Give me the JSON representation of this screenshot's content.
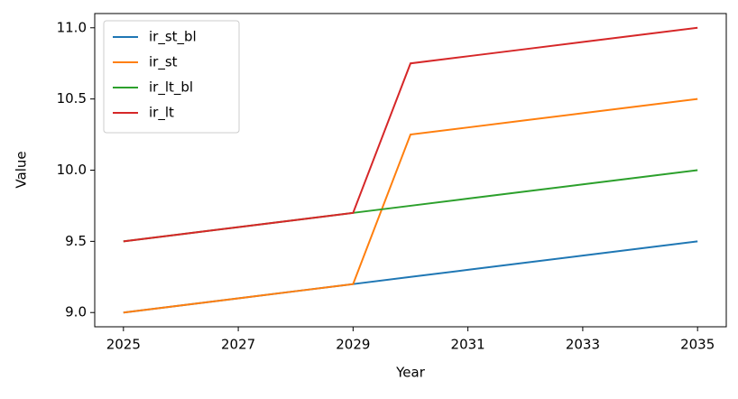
{
  "chart_data": {
    "type": "line",
    "x_label": "Year",
    "y_label": "Value",
    "x": [
      2025,
      2026,
      2027,
      2028,
      2029,
      2030,
      2031,
      2032,
      2033,
      2034,
      2035
    ],
    "series": [
      {
        "name": "ir_st_bl",
        "color": "#1f77b4",
        "values": [
          9.0,
          9.05,
          9.1,
          9.15,
          9.2,
          9.25,
          9.3,
          9.35,
          9.4,
          9.45,
          9.5
        ]
      },
      {
        "name": "ir_st",
        "color": "#ff7f0e",
        "values": [
          9.0,
          9.05,
          9.1,
          9.15,
          9.2,
          10.25,
          10.3,
          10.35,
          10.4,
          10.45,
          10.5
        ]
      },
      {
        "name": "ir_lt_bl",
        "color": "#2ca02c",
        "values": [
          9.5,
          9.55,
          9.6,
          9.65,
          9.7,
          9.75,
          9.8,
          9.85,
          9.9,
          9.95,
          10.0
        ]
      },
      {
        "name": "ir_lt",
        "color": "#d62728",
        "values": [
          9.5,
          9.55,
          9.6,
          9.65,
          9.7,
          10.75,
          10.8,
          10.85,
          10.9,
          10.95,
          11.0
        ]
      }
    ],
    "xlim": [
      2024.5,
      2035.5
    ],
    "xticks": [
      2025,
      2027,
      2029,
      2031,
      2033,
      2035
    ],
    "ylim": [
      8.9,
      11.1
    ],
    "yticks": [
      {
        "value": 9.0,
        "label": "9.0"
      },
      9.5,
      {
        "value": 10.0,
        "label": "10.0"
      },
      10.5,
      {
        "value": 11.0,
        "label": "11.0"
      }
    ],
    "legend": "upper left",
    "grid": false
  }
}
